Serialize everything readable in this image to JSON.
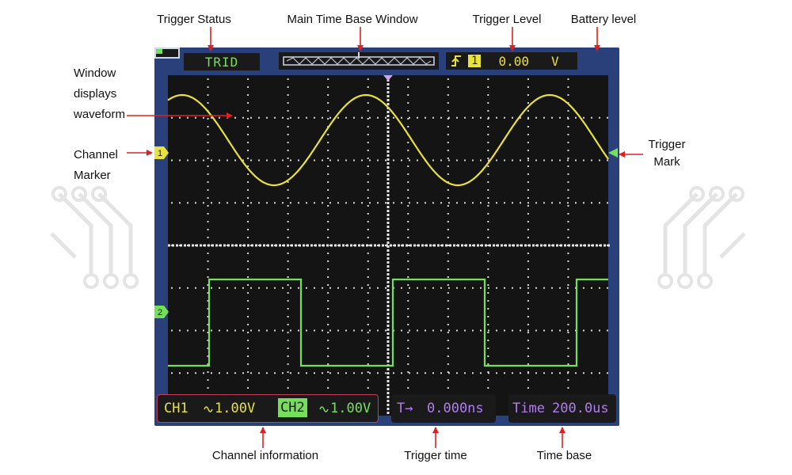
{
  "callouts": {
    "trigger_status": "Trigger Status",
    "main_time_base_window": "Main Time  Base Window",
    "trigger_level": "Trigger Level",
    "battery_level": "Battery level",
    "window_displays_waveform": [
      "Window",
      "displays",
      "waveform"
    ],
    "channel_marker": [
      "Channel",
      "Marker"
    ],
    "trigger_mark": [
      "Trigger",
      "Mark"
    ],
    "channel_information": "Channel information",
    "trigger_time": "Trigger time",
    "time_base": "Time base"
  },
  "scope": {
    "trigger_status": "TRID",
    "trigger_level": {
      "edge_icon": "rising-edge-icon",
      "channel": "1",
      "value": "0.00",
      "unit": "V"
    },
    "battery_fraction": 0.35,
    "channel1_marker": "1",
    "channel2_marker": "2",
    "ch1": {
      "label": "CH1",
      "coupling_icon": "ac-coupling-icon",
      "volts_div": "1.00V"
    },
    "ch2": {
      "label": "CH2",
      "coupling_icon": "ac-coupling-icon",
      "volts_div": "1.00V"
    },
    "trigger_time": {
      "label": "T→",
      "value": "0.000ns"
    },
    "time_base": {
      "label": "Time",
      "value": "200.0us"
    }
  },
  "colors": {
    "ch1": "#e8e23a",
    "ch2": "#74e05a",
    "time_purple": "#b07ef0",
    "callout_arrow": "#e02020",
    "frame": "#29407a"
  }
}
